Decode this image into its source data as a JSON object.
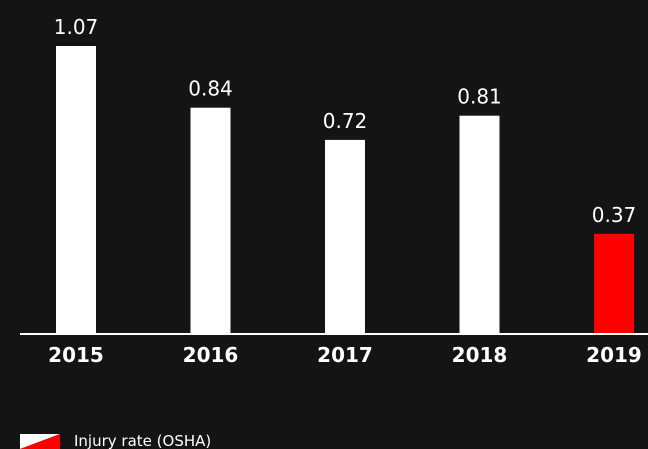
{
  "chart_data": {
    "type": "bar",
    "categories": [
      "2015",
      "2016",
      "2017",
      "2018",
      "2019"
    ],
    "series": [
      {
        "name": "Injury rate (OSHA)",
        "values": [
          1.07,
          0.84,
          0.72,
          0.81,
          0.37
        ]
      }
    ],
    "data_labels": [
      "1.07",
      "0.84",
      "0.72",
      "0.81",
      "0.37"
    ],
    "bar_colors": [
      "#ffffff",
      "#ffffff",
      "#ffffff",
      "#ffffff",
      "#ff0000"
    ],
    "legend": {
      "label": "Injury rate (OSHA)",
      "position": "bottom-left",
      "swatch_colors": [
        "#ffffff",
        "#ff0000"
      ]
    },
    "title": "",
    "xlabel": "",
    "ylabel": "",
    "ylim": [
      0,
      1.07
    ],
    "grid": false,
    "colors": {
      "background": "#141414",
      "baseline": "#ffffff",
      "text": "#ffffff"
    }
  }
}
